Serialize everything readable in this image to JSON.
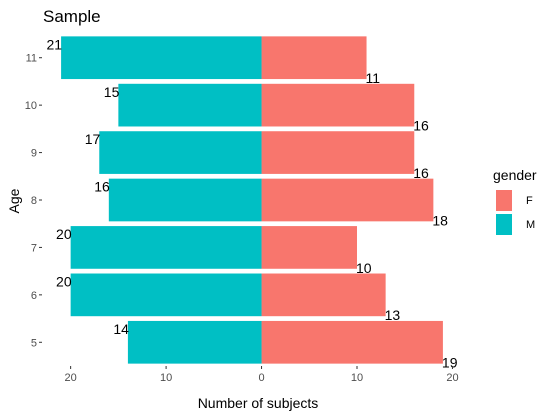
{
  "chart_data": {
    "type": "bar",
    "orientation": "horizontal",
    "layout": "population-pyramid",
    "title": "Sample",
    "xlabel": "Number of subjects",
    "ylabel": "Age",
    "categories": [
      "5",
      "6",
      "7",
      "8",
      "9",
      "10",
      "11"
    ],
    "series": [
      {
        "name": "F",
        "color": "#F8766D",
        "values": [
          19,
          13,
          10,
          18,
          16,
          16,
          11
        ]
      },
      {
        "name": "M",
        "color": "#00BFC4",
        "values": [
          14,
          20,
          20,
          16,
          17,
          15,
          21
        ]
      }
    ],
    "xlim": [
      -23,
      21
    ],
    "x_ticks": [
      -20,
      -10,
      0,
      10,
      20
    ],
    "x_tick_labels": [
      "20",
      "10",
      "0",
      "10",
      "20"
    ],
    "grid": false,
    "legend": {
      "title": "gender",
      "position": "right"
    }
  }
}
